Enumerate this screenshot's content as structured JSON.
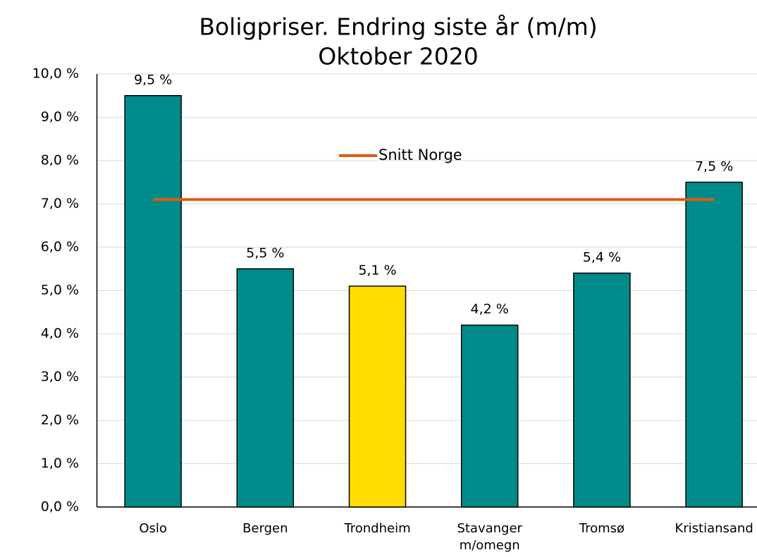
{
  "chart_data": {
    "type": "bar",
    "title": [
      "Boligpriser. Endring siste år (m/m)",
      "Oktober 2020"
    ],
    "categories": [
      "Oslo",
      "Bergen",
      "Trondheim",
      "Stavanger\nm/omegn",
      "Tromsø",
      "Kristiansand"
    ],
    "series": [
      {
        "name": null,
        "type": "bar",
        "colors": [
          "#008b8b",
          "#008b8b",
          "#ffdd00",
          "#008b8b",
          "#008b8b",
          "#008b8b"
        ],
        "values": [
          9.5,
          5.5,
          5.1,
          4.2,
          5.4,
          7.5
        ],
        "value_labels": [
          "9,5 %",
          "5,5 %",
          "5,1 %",
          "4,2 %",
          "5,4 %",
          "7,5 %"
        ]
      },
      {
        "name": "Snitt Norge",
        "type": "line",
        "color": "#e05a10",
        "values": [
          7.1,
          7.1,
          7.1,
          7.1,
          7.1,
          7.1
        ]
      }
    ],
    "ylim": [
      0,
      10
    ],
    "yticks": [
      {
        "value": 0,
        "label": "0,0 %"
      },
      {
        "value": 1,
        "label": "1,0 %"
      },
      {
        "value": 2,
        "label": "2,0 %"
      },
      {
        "value": 3,
        "label": "3,0 %"
      },
      {
        "value": 4,
        "label": "4,0 %"
      },
      {
        "value": 5,
        "label": "5,0 %"
      },
      {
        "value": 6,
        "label": "6,0 %"
      },
      {
        "value": 7,
        "label": "7,0 %"
      },
      {
        "value": 8,
        "label": "8,0 %"
      },
      {
        "value": 9,
        "label": "9,0 %"
      },
      {
        "value": 10,
        "label": "10,0 %"
      }
    ],
    "grid": true
  }
}
